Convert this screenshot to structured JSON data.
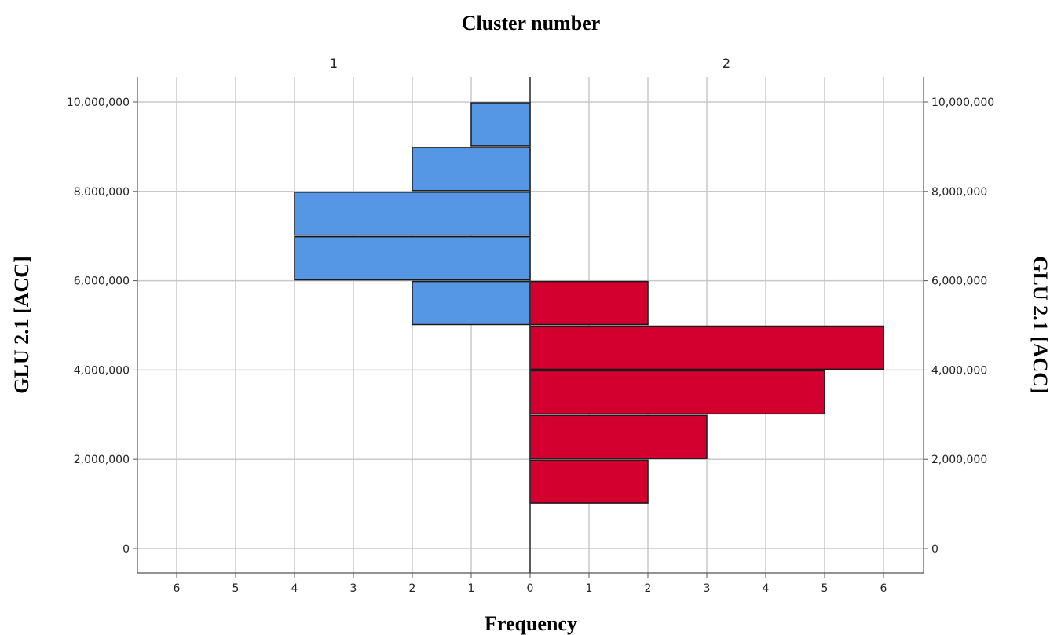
{
  "chart_data": {
    "type": "bar",
    "orientation": "population-pyramid",
    "title": "Cluster number",
    "xlabel": "Frequency",
    "ylabel_left": "GLU 2.1 [ACC]",
    "ylabel_right": "GLU 2.1 [ACC]",
    "ylim": [
      -500000,
      10550000
    ],
    "y_ticks": [
      0,
      2000000,
      4000000,
      6000000,
      8000000,
      10000000
    ],
    "y_tick_labels": [
      "0",
      "2,000,000",
      "4,000,000",
      "6,000,000",
      "8,000,000",
      "10,000,000"
    ],
    "x_tick_labels_left": [
      "6",
      "5",
      "4",
      "3",
      "2",
      "1"
    ],
    "x_tick_labels_right": [
      "0",
      "1",
      "2",
      "3",
      "4",
      "5",
      "6"
    ],
    "xlim": [
      0,
      6.65
    ],
    "grid": true,
    "bin_width": 1000000,
    "series": [
      {
        "name": "1",
        "side": "left",
        "color": "#5597E5",
        "bins": [
          {
            "from": 5000000,
            "to": 6000000,
            "count": 2
          },
          {
            "from": 6000000,
            "to": 7000000,
            "count": 4
          },
          {
            "from": 7000000,
            "to": 8000000,
            "count": 4
          },
          {
            "from": 8000000,
            "to": 9000000,
            "count": 2
          },
          {
            "from": 9000000,
            "to": 10000000,
            "count": 1
          }
        ]
      },
      {
        "name": "2",
        "side": "right",
        "color": "#D3002F",
        "bins": [
          {
            "from": 1000000,
            "to": 2000000,
            "count": 2
          },
          {
            "from": 2000000,
            "to": 3000000,
            "count": 3
          },
          {
            "from": 3000000,
            "to": 4000000,
            "count": 5
          },
          {
            "from": 4000000,
            "to": 5000000,
            "count": 6
          },
          {
            "from": 5000000,
            "to": 6000000,
            "count": 2
          }
        ]
      }
    ]
  }
}
